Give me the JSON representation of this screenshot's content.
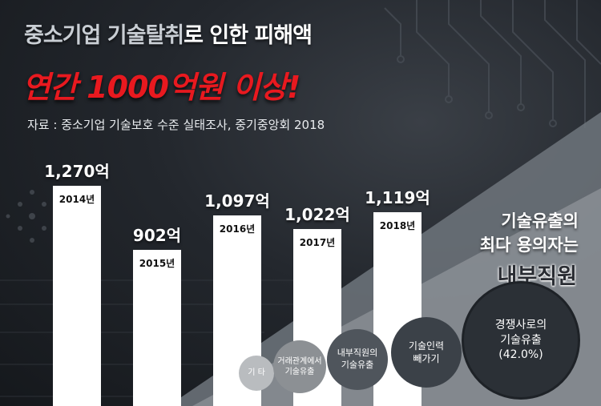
{
  "title": {
    "line1_part1": "중소기업 기술탈취",
    "line1_part2": "로 인한 피해액",
    "line2": "연간 1000억원 이상!"
  },
  "source": "자료 : 중소기업 기술보호 수준 실태조사, 중기중앙회 2018",
  "chart_data": [
    {
      "type": "bar",
      "categories": [
        "2014년",
        "2015년",
        "2016년",
        "2017년",
        "2018년"
      ],
      "values": [
        1270,
        902,
        1097,
        1022,
        1119
      ],
      "value_labels": [
        "1,270억",
        "902억",
        "1,097억",
        "1,022억",
        "1,119억"
      ],
      "ylim": [
        0,
        1400
      ]
    },
    {
      "type": "bubble",
      "items": [
        {
          "label": "기 타"
        },
        {
          "label": "거래관계에서\n기술유출"
        },
        {
          "label": "내부직원의\n기술유출"
        },
        {
          "label": "기술인력\n빼가기"
        },
        {
          "label": "경쟁사로의\n기술유출\n(42.0%)",
          "value": 42.0
        }
      ]
    }
  ],
  "subtitle": {
    "line1": "기술유출의",
    "line2": "최다 용의자는",
    "line3": "내부직원"
  },
  "colors": {
    "title_red": "#e8191f",
    "bar": "#ffffff",
    "bubble_colors": [
      "#b9bcbf",
      "#8c9094",
      "#4f555c",
      "#3b4148",
      "#2b3036"
    ]
  }
}
